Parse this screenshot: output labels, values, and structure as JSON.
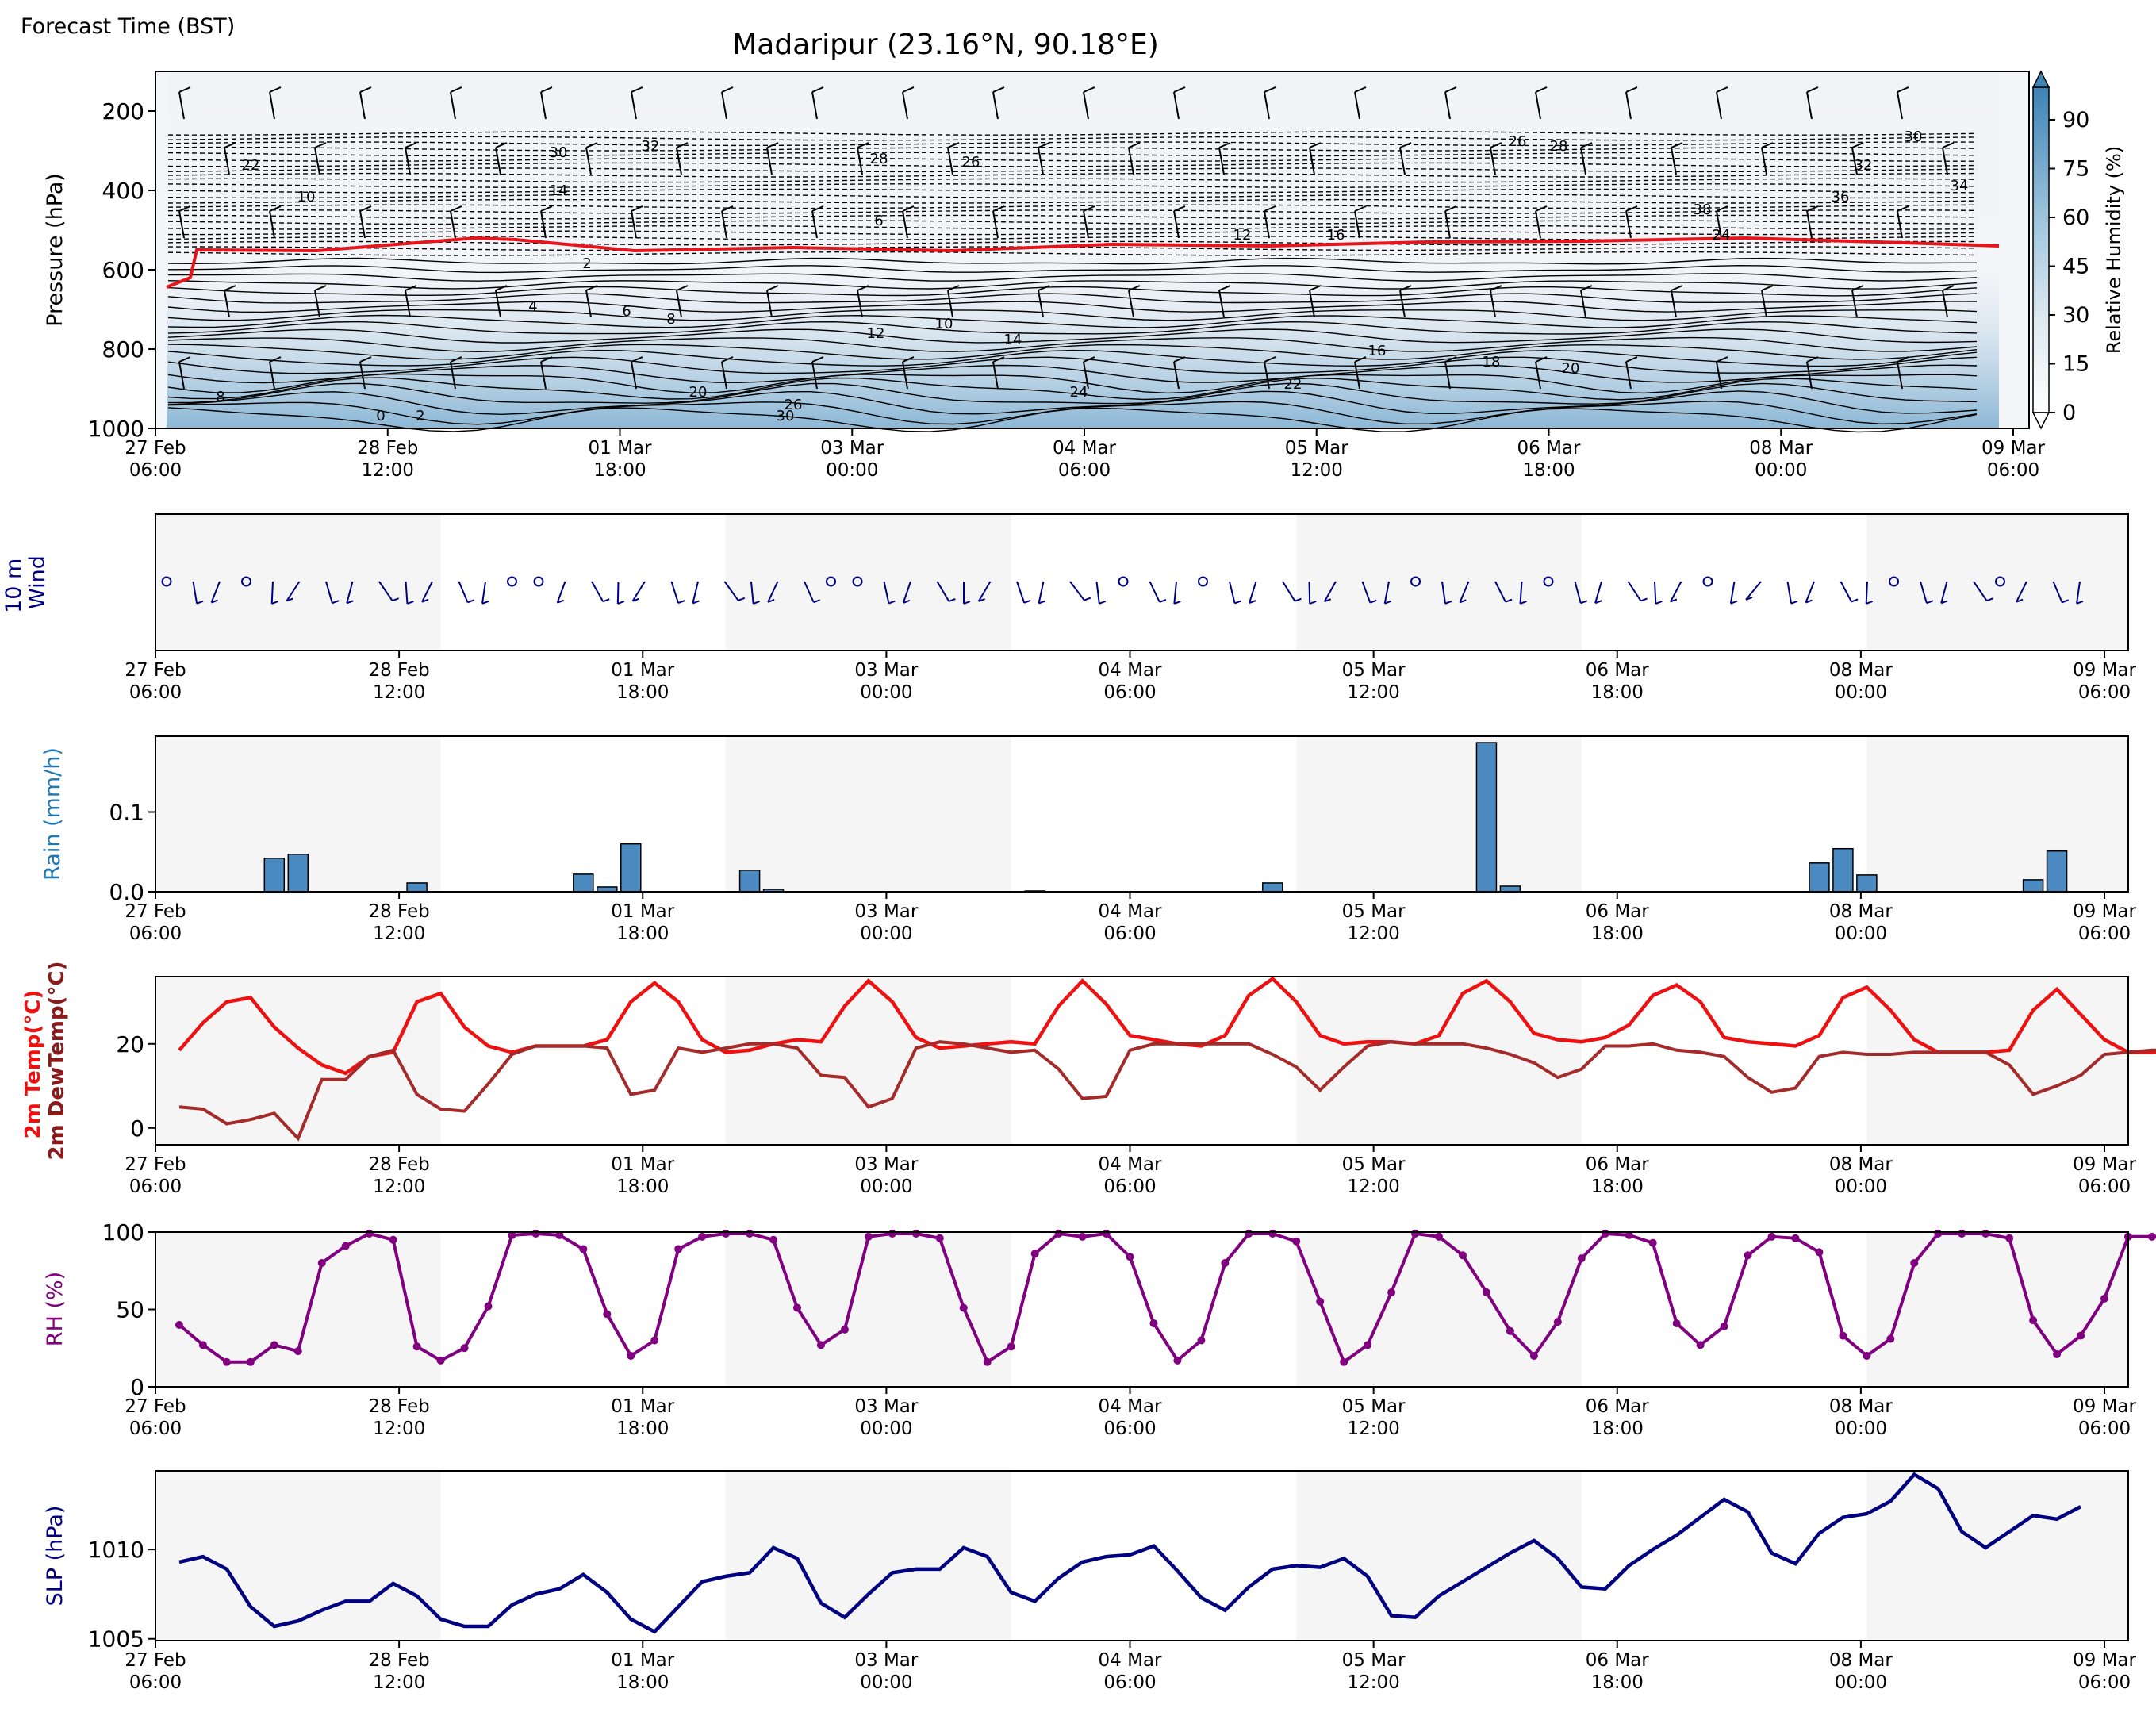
{
  "header": {
    "corner_label": "Forecast Time (BST)",
    "title": "Madaripur (23.16°N, 90.18°E)"
  },
  "time_ticks": [
    "27 Feb|06:00",
    "28 Feb|12:00",
    "01 Mar|18:00",
    "03 Mar|00:00",
    "04 Mar|06:00",
    "05 Mar|12:00",
    "06 Mar|18:00",
    "08 Mar|00:00",
    "09 Mar|06:00"
  ],
  "colors": {
    "rh_colormap_low": "#ffffff",
    "rh_colormap_high": "#2f7fb5",
    "freezing_line": "#e8141c",
    "wind_barb_upper": "#000000",
    "wind_barb_surface": "#000080",
    "rain_bar": "#4a8ac0",
    "temp_line": "#ee1111",
    "dewpoint_line": "#a52a2a",
    "rh_line": "#800080",
    "slp_line": "#000080",
    "night_shade": "#f5f5f5"
  },
  "chart_data": [
    {
      "type": "heatmap",
      "name": "cross-section",
      "ylabel": "Pressure (hPa)",
      "yticks": [
        200,
        400,
        600,
        800,
        1000
      ],
      "ylim": [
        1000,
        100
      ],
      "colorbar_label": "Relative Humidity (%)",
      "colorbar_ticks": [
        0,
        15,
        30,
        45,
        60,
        75,
        90
      ],
      "contour_labels": [
        "22",
        "10",
        "30",
        "32",
        "14",
        "28",
        "26",
        "6",
        "2",
        "4",
        "6",
        "8",
        "12",
        "10",
        "14",
        "16",
        "18",
        "20",
        "22",
        "24",
        "26",
        "28",
        "30",
        "32",
        "36",
        "34",
        "38",
        "24",
        "12",
        "16",
        "8",
        "0",
        "2",
        "20",
        "26",
        "30"
      ],
      "notes": "temperature contours (°C), freezing level line, wind barbs, RH shading"
    },
    {
      "type": "line",
      "name": "10 m wind",
      "ylabel": "10 m\nWind",
      "notes": "surface wind barbs"
    },
    {
      "type": "bar",
      "name": "rain",
      "ylabel": "Rain (mm/h)",
      "yticks": [
        0.0,
        0.1
      ],
      "ylim": [
        0,
        0.195
      ],
      "x_hours": [
        15,
        18,
        33,
        54,
        57,
        60,
        75,
        78,
        111,
        141,
        168,
        171,
        210,
        213,
        216,
        237,
        240
      ],
      "values": [
        0.042,
        0.047,
        0.011,
        0.022,
        0.006,
        0.06,
        0.027,
        0.003,
        0.001,
        0.011,
        0.187,
        0.007,
        0.036,
        0.054,
        0.021,
        0.015,
        0.051
      ]
    },
    {
      "type": "line",
      "name": "temperature",
      "ylabel": "2m Temp(°C)\n2m DewTemp(°C)",
      "yticks": [
        0,
        20
      ],
      "ylim": [
        -4,
        36
      ],
      "x_step_hours": 3,
      "series": [
        {
          "name": "2m Temp(°C)",
          "values": [
            18.5,
            25,
            30,
            31,
            24,
            19,
            15,
            13,
            17,
            18,
            30,
            32,
            24,
            19.5,
            18,
            19.5,
            19.5,
            19.5,
            21,
            30,
            34.5,
            30,
            21,
            18,
            18.5,
            20,
            21,
            20.5,
            29,
            35,
            30,
            21.5,
            19,
            19.5,
            20,
            20.5,
            20,
            29,
            35,
            29.5,
            22,
            21,
            20,
            19.5,
            22,
            31.5,
            35.5,
            30,
            22,
            20,
            20.5,
            20.5,
            20,
            22,
            32,
            35,
            30,
            22.5,
            21,
            20.5,
            21.5,
            24.5,
            31.5,
            34,
            30,
            21.5,
            20.5,
            20,
            19.5,
            22,
            31,
            33.5,
            28,
            21,
            18,
            18,
            18,
            18.5,
            28,
            33,
            27,
            21,
            18,
            18,
            18.5
          ]
        },
        {
          "name": "2m DewTemp(°C)",
          "values": [
            5,
            4.5,
            1,
            2,
            3.5,
            -2.5,
            11.5,
            11.5,
            17,
            18.5,
            8,
            4.5,
            4,
            10.5,
            17.5,
            19.5,
            19.5,
            19.5,
            19,
            8,
            9,
            19,
            18,
            19,
            20,
            20,
            19,
            12.5,
            12,
            5,
            7,
            19,
            20.5,
            20,
            19,
            18,
            18.5,
            14,
            7,
            7.5,
            18.5,
            20,
            20,
            20,
            20,
            20,
            17.5,
            14.5,
            9,
            14.5,
            19.5,
            20.5,
            20,
            20,
            20,
            19,
            17.5,
            15.5,
            12,
            14,
            19.5,
            19.5,
            20,
            18.5,
            18,
            17,
            12,
            8.5,
            9.5,
            17,
            18,
            17.5,
            17.5,
            18,
            18,
            18,
            18,
            15,
            8,
            10,
            12.5,
            17.5,
            18,
            18.5,
            18.5
          ]
        }
      ]
    },
    {
      "type": "line",
      "name": "relative humidity",
      "ylabel": "RH (%)",
      "yticks": [
        0,
        50,
        100
      ],
      "ylim": [
        0,
        100
      ],
      "x_step_hours": 3,
      "series": [
        {
          "name": "RH (%)",
          "values": [
            40,
            27,
            16,
            16,
            27,
            23,
            80,
            91,
            99,
            95,
            26,
            17,
            25,
            52,
            98,
            99,
            98,
            89,
            47,
            20,
            30,
            89,
            97,
            99,
            99,
            95,
            51,
            27,
            37,
            97,
            99,
            99,
            96,
            51,
            16,
            26,
            86,
            99,
            97,
            99,
            84,
            41,
            17,
            30,
            80,
            99,
            99,
            94,
            55,
            16,
            27,
            61,
            99,
            97,
            85,
            61,
            36,
            20,
            42,
            83,
            99,
            98,
            93,
            41,
            27,
            39,
            85,
            97,
            96,
            87,
            33,
            20,
            31,
            80,
            99,
            99,
            99,
            96,
            43,
            21,
            33,
            57,
            97,
            97,
            98
          ]
        }
      ]
    },
    {
      "type": "line",
      "name": "sea level pressure",
      "ylabel": "SLP (hPa)",
      "yticks": [
        1005,
        1010
      ],
      "ylim": [
        1004.9,
        1014.4
      ],
      "x_step_hours": 3,
      "series": [
        {
          "name": "SLP (hPa)",
          "values": [
            1009.3,
            1009.6,
            1008.9,
            1006.8,
            1005.7,
            1006,
            1006.6,
            1007.1,
            1007.1,
            1008.1,
            1007.4,
            1006.1,
            1005.7,
            1005.7,
            1006.9,
            1007.5,
            1007.8,
            1008.6,
            1007.6,
            1006.1,
            1005.4,
            1006.8,
            1008.2,
            1008.5,
            1008.7,
            1010.1,
            1009.5,
            1007,
            1006.2,
            1007.5,
            1008.7,
            1008.9,
            1008.9,
            1010.1,
            1009.6,
            1007.6,
            1007.1,
            1008.4,
            1009.3,
            1009.6,
            1009.7,
            1010.2,
            1008.8,
            1007.3,
            1006.6,
            1007.9,
            1008.9,
            1009.1,
            1009,
            1009.5,
            1008.5,
            1006.3,
            1006.2,
            1007.4,
            1008.2,
            1009,
            1009.8,
            1010.5,
            1009.5,
            1007.9,
            1007.8,
            1009.1,
            1010,
            1010.8,
            1011.8,
            1012.8,
            1012.1,
            1009.8,
            1009.2,
            1010.9,
            1011.8,
            1012,
            1012.7,
            1014.2,
            1013.4,
            1011,
            1010.1,
            1011,
            1011.9,
            1011.7,
            1012.4
          ]
        }
      ]
    }
  ]
}
